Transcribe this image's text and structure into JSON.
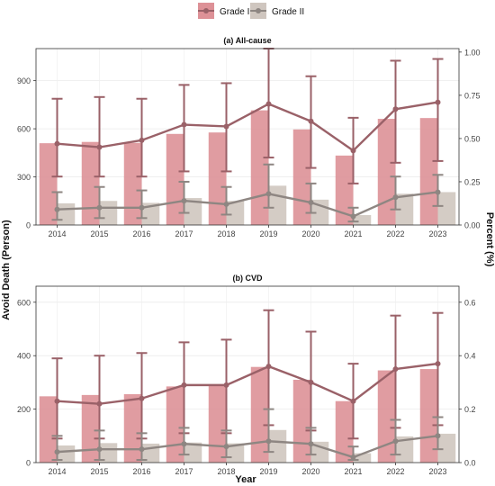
{
  "legend": {
    "placement": "top-center",
    "items": [
      {
        "label": "Grade I",
        "color": "#dd9197",
        "line_color": "#9a6168"
      },
      {
        "label": "Grade II",
        "color": "#cfc6bf",
        "line_color": "#8e8682"
      }
    ]
  },
  "axes": {
    "ylabel_left": "Avoid Death (Person)",
    "ylabel_right": "Percent (%)",
    "xlabel": "Year"
  },
  "chart_data": [
    {
      "type": "bar",
      "title": "(a) All-cause",
      "categories": [
        "2014",
        "2015",
        "2016",
        "2017",
        "2018",
        "2019",
        "2020",
        "2021",
        "2022",
        "2023"
      ],
      "ylim": [
        0,
        1100
      ],
      "yticks": [
        0,
        300,
        600,
        900
      ],
      "y2lim": [
        0,
        1.02
      ],
      "y2ticks": [
        0.0,
        0.25,
        0.5,
        0.75,
        1.0
      ],
      "grid": true,
      "series": [
        {
          "name": "Grade I",
          "bar_values": [
            510,
            518,
            512,
            568,
            577,
            715,
            596,
            433,
            662,
            667
          ],
          "line_values": [
            0.47,
            0.45,
            0.49,
            0.58,
            0.57,
            0.7,
            0.6,
            0.43,
            0.67,
            0.71
          ],
          "err_low": [
            0.28,
            0.28,
            0.28,
            0.31,
            0.31,
            0.39,
            0.33,
            0.24,
            0.36,
            0.37
          ],
          "err_high": [
            0.73,
            0.74,
            0.73,
            0.81,
            0.82,
            1.02,
            0.86,
            0.62,
            0.95,
            0.96
          ]
        },
        {
          "name": "Grade II",
          "bar_values": [
            135,
            150,
            138,
            168,
            150,
            245,
            158,
            62,
            195,
            205
          ],
          "line_values": [
            0.09,
            0.1,
            0.1,
            0.14,
            0.12,
            0.18,
            0.13,
            0.05,
            0.16,
            0.19
          ],
          "err_low": [
            0.03,
            0.04,
            0.04,
            0.07,
            0.06,
            0.1,
            0.07,
            0.02,
            0.09,
            0.11
          ],
          "err_high": [
            0.19,
            0.22,
            0.2,
            0.25,
            0.22,
            0.35,
            0.24,
            0.1,
            0.28,
            0.29
          ]
        }
      ]
    },
    {
      "type": "bar",
      "title": "(b) CVD",
      "categories": [
        "2014",
        "2015",
        "2016",
        "2017",
        "2018",
        "2019",
        "2020",
        "2021",
        "2022",
        "2023"
      ],
      "ylim": [
        0,
        660
      ],
      "yticks": [
        0,
        200,
        400,
        600
      ],
      "y2lim": [
        0,
        0.66
      ],
      "y2ticks": [
        0.0,
        0.2,
        0.4,
        0.6
      ],
      "grid": true,
      "series": [
        {
          "name": "Grade I",
          "bar_values": [
            248,
            253,
            256,
            285,
            290,
            358,
            310,
            230,
            345,
            350
          ],
          "line_values": [
            0.23,
            0.22,
            0.24,
            0.29,
            0.29,
            0.36,
            0.3,
            0.23,
            0.35,
            0.37
          ],
          "err_low": [
            0.09,
            0.09,
            0.09,
            0.11,
            0.11,
            0.14,
            0.12,
            0.09,
            0.13,
            0.14
          ],
          "err_high": [
            0.39,
            0.4,
            0.41,
            0.45,
            0.46,
            0.57,
            0.49,
            0.37,
            0.55,
            0.56
          ]
        },
        {
          "name": "Grade II",
          "bar_values": [
            64,
            73,
            71,
            75,
            72,
            122,
            78,
            35,
            98,
            108
          ],
          "line_values": [
            0.04,
            0.05,
            0.05,
            0.07,
            0.06,
            0.08,
            0.07,
            0.02,
            0.08,
            0.1
          ],
          "err_low": [
            0.01,
            0.01,
            0.01,
            0.03,
            0.02,
            0.04,
            0.03,
            0.01,
            0.03,
            0.05
          ],
          "err_high": [
            0.1,
            0.12,
            0.11,
            0.13,
            0.12,
            0.2,
            0.13,
            0.06,
            0.16,
            0.17
          ]
        }
      ]
    }
  ]
}
